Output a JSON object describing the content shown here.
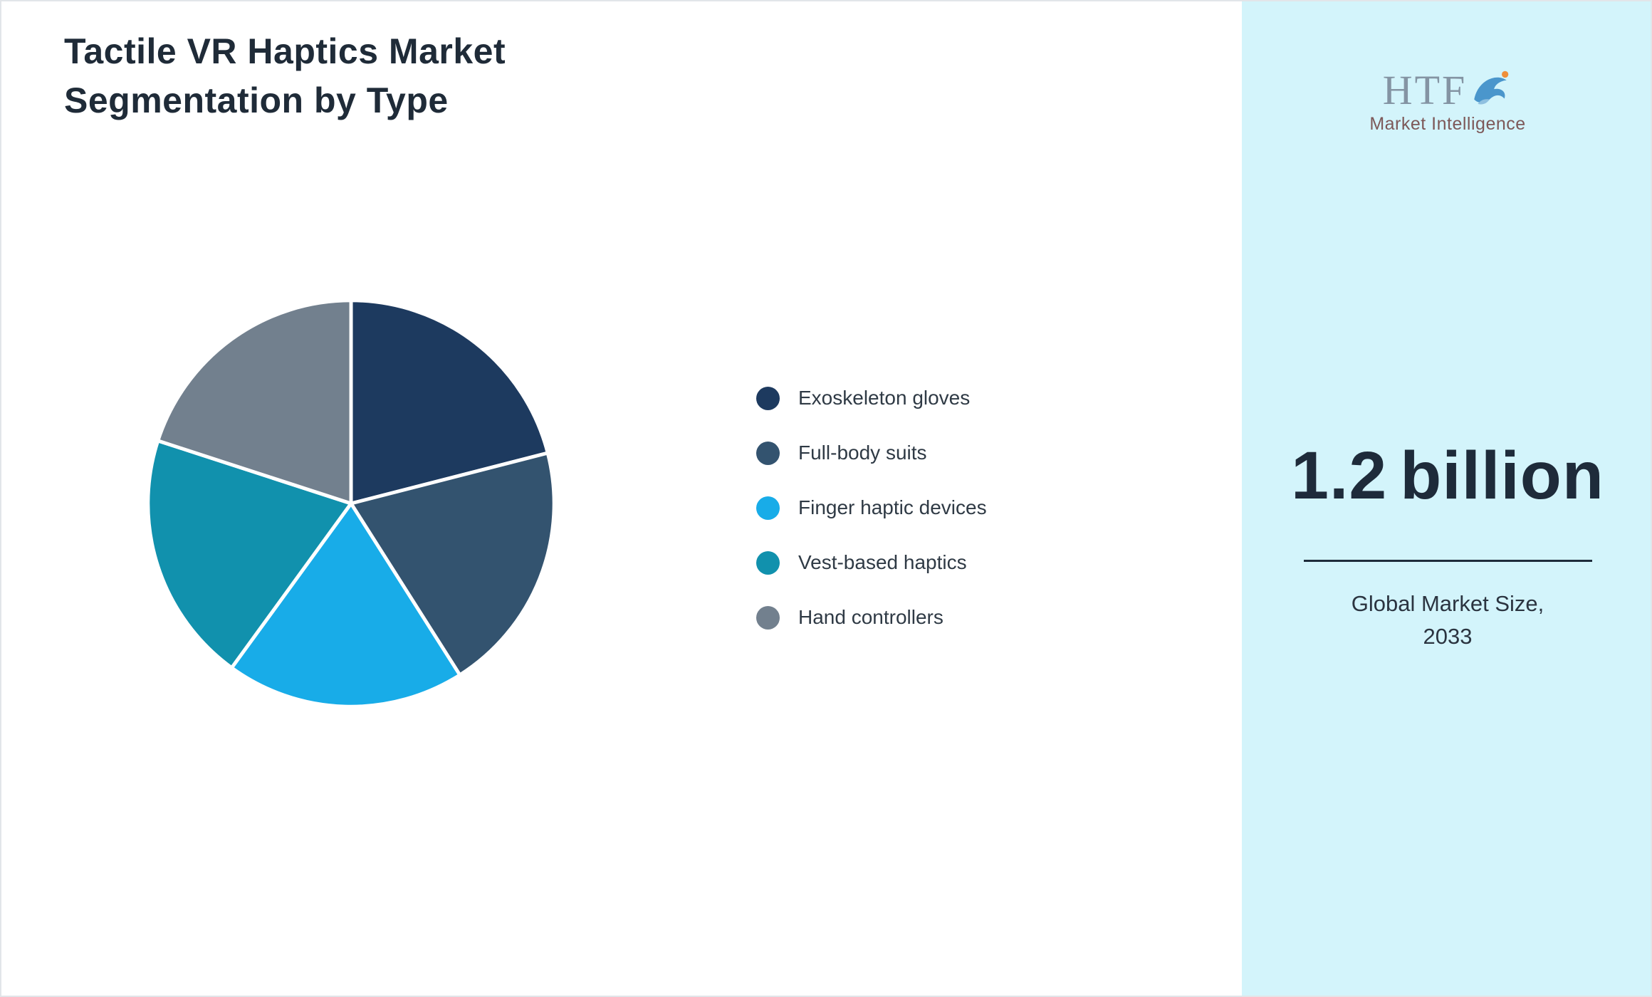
{
  "frame": {
    "background": "#ffffff",
    "border_color": "#e2e5e9"
  },
  "header": {
    "title": "Tactile VR Haptics Market\nSegmentation by Type",
    "title_color": "#1f2b38"
  },
  "chart_data": {
    "type": "pie",
    "title": "Tactile VR Haptics Market Segmentation by Type",
    "categories": [
      "Exoskeleton gloves",
      "Full-body suits",
      "Finger haptic devices",
      "Vest-based haptics",
      "Hand controllers"
    ],
    "values": [
      21,
      20,
      19,
      20,
      20
    ],
    "colors": [
      "#1d3a5f",
      "#33536f",
      "#18ace8",
      "#1191ad",
      "#72808e"
    ],
    "slice_border_color": "#ffffff",
    "start_angle_deg": -90,
    "legend_position": "right",
    "grid": false
  },
  "sidebar": {
    "background": "#d3f4fb",
    "logo": {
      "text": "HTF",
      "subtext": "Market Intelligence",
      "text_color": "#8494a3",
      "subtext_color": "#7d5858",
      "dolphin_color": "#4a96cc",
      "accent_color": "#ef8f3a"
    },
    "market_size": {
      "value": "1.2",
      "unit": "billion",
      "caption": "Global Market Size,\n2033",
      "value_color": "#1e2b3a"
    }
  }
}
